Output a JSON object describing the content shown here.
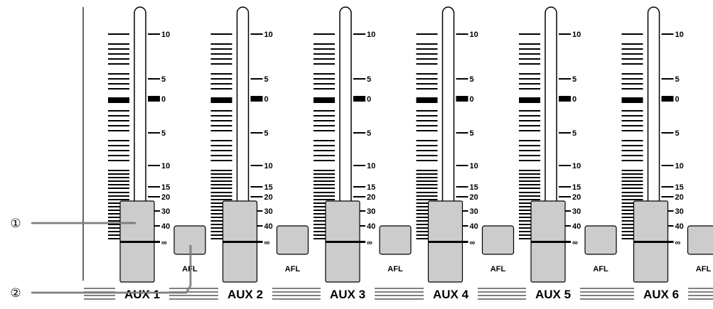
{
  "channels": [
    {
      "name": "AUX 1",
      "afl_label": "AFL"
    },
    {
      "name": "AUX 2",
      "afl_label": "AFL"
    },
    {
      "name": "AUX 3",
      "afl_label": "AFL"
    },
    {
      "name": "AUX 4",
      "afl_label": "AFL"
    },
    {
      "name": "AUX 5",
      "afl_label": "AFL"
    },
    {
      "name": "AUX 6",
      "afl_label": "AFL"
    }
  ],
  "scale_labels": [
    "10",
    "5",
    "0",
    "5",
    "10",
    "15",
    "20",
    "30",
    "40",
    "∞"
  ],
  "callouts": [
    {
      "label": "①",
      "target": "fader-knob"
    },
    {
      "label": "②",
      "target": "afl-button"
    }
  ],
  "colors": {
    "line": "#000000",
    "knob_fill": "#cccccc",
    "button_fill": "#cccccc",
    "background": "#ffffff"
  }
}
